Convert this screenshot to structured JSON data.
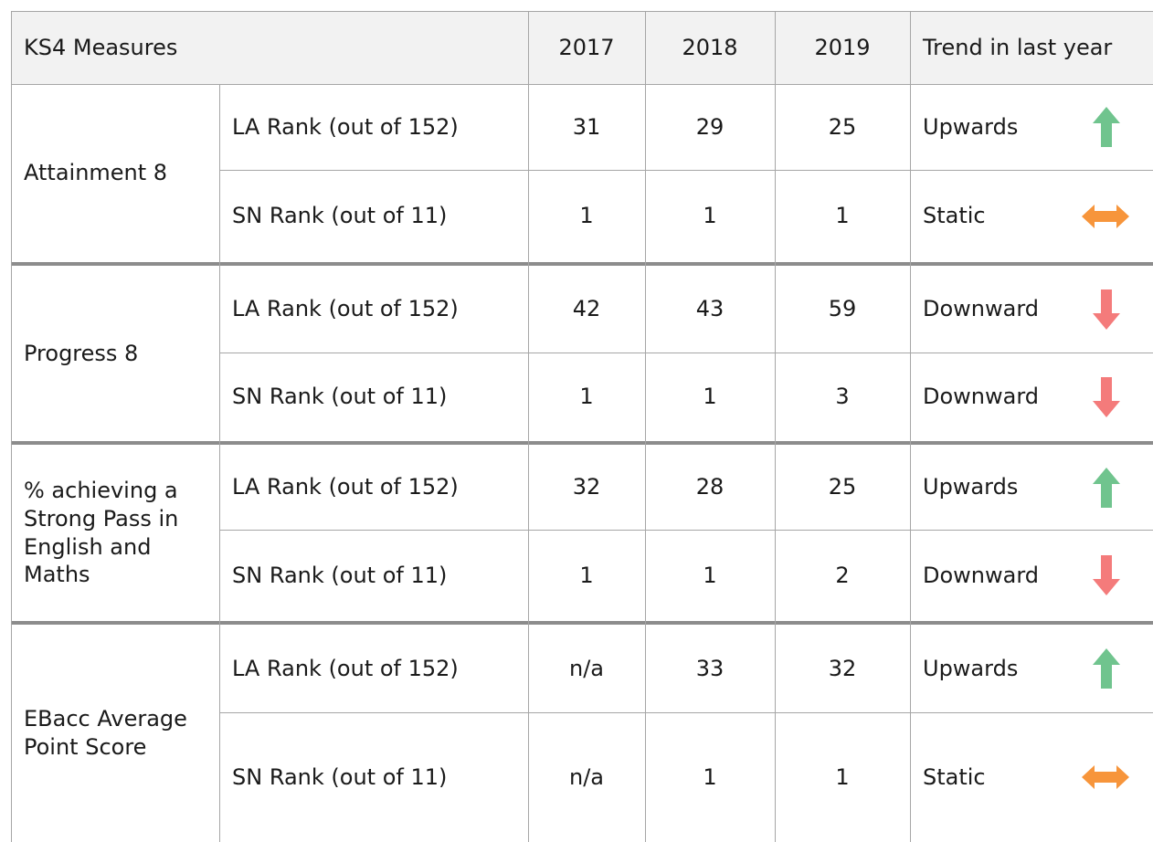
{
  "table": {
    "header": [
      "KS4 Measures",
      "2017",
      "2018",
      "2019",
      "Trend in last year"
    ],
    "groups": [
      {
        "measure": "Attainment 8",
        "rows": [
          {
            "rank": "LA Rank (out of 152)",
            "values": [
              "31",
              "29",
              "25"
            ],
            "trend": "Upwards"
          },
          {
            "rank": "SN Rank (out of 11)",
            "values": [
              "1",
              "1",
              "1"
            ],
            "trend": "Static"
          }
        ]
      },
      {
        "measure": "Progress 8",
        "rows": [
          {
            "rank": "LA Rank (out of 152)",
            "values": [
              "42",
              "43",
              "59"
            ],
            "trend": "Downward"
          },
          {
            "rank": "SN Rank (out of 11)",
            "values": [
              "1",
              "1",
              "3"
            ],
            "trend": "Downward"
          }
        ]
      },
      {
        "measure": "% achieving a Strong Pass in English and Maths",
        "rows": [
          {
            "rank": "LA Rank (out of 152)",
            "values": [
              "32",
              "28",
              "25"
            ],
            "trend": "Upwards"
          },
          {
            "rank": "SN Rank (out of 11)",
            "values": [
              "1",
              "1",
              "2"
            ],
            "trend": "Downward"
          }
        ]
      },
      {
        "measure": "EBacc Average Point Score",
        "rows": [
          {
            "rank": "LA Rank (out of 152)",
            "values": [
              "n/a",
              "33",
              "32"
            ],
            "trend": "Upwards"
          },
          {
            "rank": "SN Rank (out of 11)",
            "values": [
              "n/a",
              "1",
              "1"
            ],
            "trend": "Static"
          }
        ]
      }
    ]
  }
}
